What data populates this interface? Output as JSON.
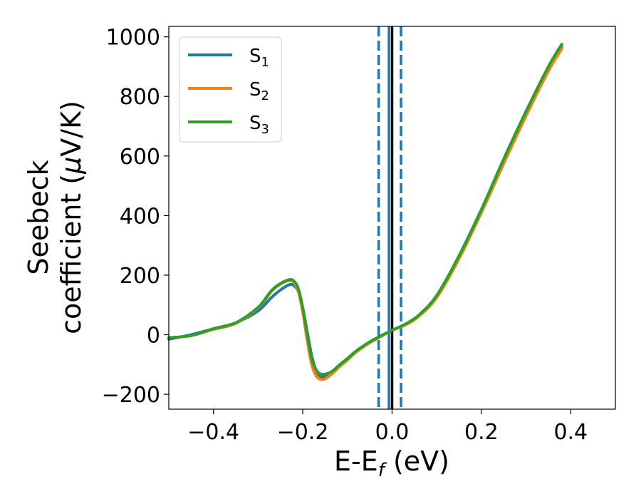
{
  "chart_data": {
    "type": "line",
    "xlabel": {
      "main": "E-E",
      "sub": "f",
      "unit": " (eV)"
    },
    "ylabel": {
      "line1": "Seebeck",
      "line2": "coefficient  (",
      "mu": "μ",
      "unit": "V/K)"
    },
    "xlim": [
      -0.5,
      0.5
    ],
    "ylim": [
      -250,
      1035
    ],
    "xticks": [
      -0.4,
      -0.2,
      0.0,
      0.2,
      0.4
    ],
    "xtick_labels": [
      "−0.4",
      "−0.2",
      "0.0",
      "0.2",
      "0.4"
    ],
    "yticks": [
      -200,
      0,
      200,
      400,
      600,
      800,
      1000
    ],
    "ytick_labels": [
      "−200",
      "0",
      "200",
      "400",
      "600",
      "800",
      "1000"
    ],
    "grid": false,
    "legend_position": "top-left",
    "series": [
      {
        "name": "S1",
        "label_main": "S",
        "label_sub": "1",
        "color": "#1f77b4",
        "x": [
          -0.5,
          -0.45,
          -0.4,
          -0.35,
          -0.3,
          -0.27,
          -0.25,
          -0.23,
          -0.22,
          -0.21,
          -0.2,
          -0.19,
          -0.18,
          -0.17,
          -0.16,
          -0.15,
          -0.14,
          -0.13,
          -0.12,
          -0.1,
          -0.08,
          -0.05,
          -0.02,
          0.0,
          0.03,
          0.06,
          0.1,
          0.15,
          0.2,
          0.25,
          0.3,
          0.35,
          0.38
        ],
        "y": [
          -15,
          0,
          20,
          40,
          80,
          125,
          150,
          168,
          165,
          145,
          90,
          10,
          -70,
          -120,
          -140,
          -140,
          -130,
          -120,
          -105,
          -80,
          -55,
          -25,
          0,
          15,
          35,
          65,
          130,
          265,
          420,
          585,
          745,
          895,
          965
        ]
      },
      {
        "name": "S2",
        "label_main": "S",
        "label_sub": "2",
        "color": "#ff7f0e",
        "x": [
          -0.5,
          -0.45,
          -0.4,
          -0.35,
          -0.3,
          -0.27,
          -0.25,
          -0.23,
          -0.22,
          -0.21,
          -0.2,
          -0.19,
          -0.18,
          -0.17,
          -0.16,
          -0.15,
          -0.14,
          -0.13,
          -0.12,
          -0.1,
          -0.08,
          -0.05,
          -0.02,
          0.0,
          0.03,
          0.06,
          0.1,
          0.15,
          0.2,
          0.25,
          0.3,
          0.35,
          0.38
        ],
        "y": [
          -10,
          -3,
          18,
          38,
          90,
          145,
          170,
          182,
          175,
          145,
          75,
          -20,
          -100,
          -138,
          -150,
          -148,
          -138,
          -125,
          -110,
          -85,
          -58,
          -27,
          -2,
          15,
          33,
          62,
          125,
          255,
          410,
          575,
          735,
          885,
          960
        ]
      },
      {
        "name": "S3",
        "label_main": "S",
        "label_sub": "3",
        "color": "#2ca02c",
        "x": [
          -0.5,
          -0.45,
          -0.4,
          -0.35,
          -0.3,
          -0.27,
          -0.25,
          -0.23,
          -0.22,
          -0.21,
          -0.2,
          -0.19,
          -0.18,
          -0.17,
          -0.16,
          -0.15,
          -0.14,
          -0.13,
          -0.12,
          -0.1,
          -0.08,
          -0.05,
          -0.02,
          0.0,
          0.03,
          0.06,
          0.1,
          0.15,
          0.2,
          0.25,
          0.3,
          0.35,
          0.38
        ],
        "y": [
          -10,
          -3,
          20,
          40,
          92,
          148,
          172,
          185,
          180,
          155,
          90,
          0,
          -80,
          -118,
          -132,
          -132,
          -128,
          -118,
          -104,
          -80,
          -54,
          -24,
          0,
          15,
          36,
          66,
          132,
          265,
          420,
          590,
          750,
          900,
          975
        ]
      }
    ],
    "vlines": [
      {
        "x": -0.03,
        "style": "dashed",
        "color": "#1f77b4"
      },
      {
        "x": 0.02,
        "style": "dashed",
        "color": "#1f77b4"
      },
      {
        "x": -0.007,
        "style": "solid",
        "color": "#1f77b4"
      },
      {
        "x": 0.0,
        "style": "solid",
        "color": "#000000"
      }
    ]
  }
}
